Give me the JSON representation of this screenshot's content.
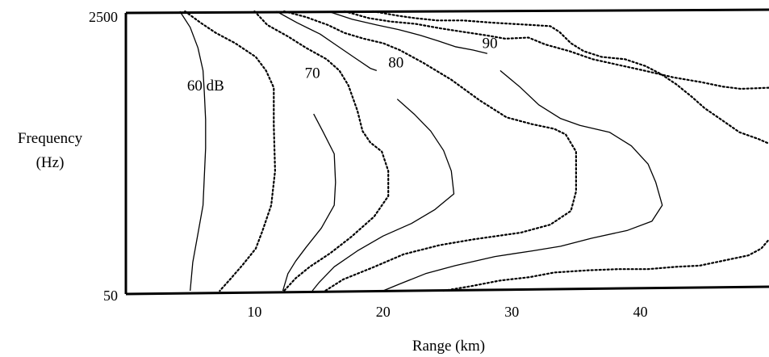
{
  "chart_data": {
    "type": "contour",
    "title": "",
    "xlabel": "Range (km)",
    "ylabel_lines": [
      "Frequency",
      "(Hz)"
    ],
    "x_ticks": [
      10,
      20,
      30,
      40
    ],
    "y_ticks": [
      50,
      2500
    ],
    "xlim": [
      0,
      50
    ],
    "ylim": [
      50,
      2500
    ],
    "grid": false,
    "contour_labels": [
      {
        "text": "60 dB",
        "x": 6.2,
        "y": 1850
      },
      {
        "text": "70",
        "x": 14.5,
        "y": 1960
      },
      {
        "text": "80",
        "x": 21.0,
        "y": 2050
      },
      {
        "text": "90",
        "x": 28.3,
        "y": 2220
      }
    ],
    "contours": [
      {
        "level": "60 dB",
        "style": "solid",
        "points": [
          [
            4.2,
            2500
          ],
          [
            5.0,
            2360
          ],
          [
            5.6,
            2180
          ],
          [
            6.0,
            1980
          ],
          [
            6.1,
            1790
          ],
          [
            6.2,
            1550
          ],
          [
            6.2,
            1300
          ],
          [
            6.1,
            1050
          ],
          [
            6.0,
            800
          ],
          [
            5.6,
            550
          ],
          [
            5.2,
            300
          ],
          [
            5.0,
            50
          ]
        ]
      },
      {
        "level": "",
        "style": "dotted",
        "points": [
          [
            4.6,
            2500
          ],
          [
            5.8,
            2400
          ],
          [
            7.0,
            2310
          ],
          [
            8.5,
            2220
          ],
          [
            10.1,
            2100
          ],
          [
            10.9,
            1980
          ],
          [
            11.5,
            1830
          ],
          [
            11.5,
            1500
          ],
          [
            11.6,
            1100
          ],
          [
            11.3,
            800
          ],
          [
            10.6,
            570
          ],
          [
            10.1,
            420
          ],
          [
            9.1,
            280
          ],
          [
            8.1,
            150
          ],
          [
            7.3,
            50
          ]
        ]
      },
      {
        "level": "70",
        "style": "solid",
        "points": [
          [
            14.6,
            1600
          ],
          [
            15.3,
            1450
          ],
          [
            16.2,
            1250
          ],
          [
            16.3,
            1000
          ],
          [
            16.2,
            800
          ],
          [
            15.2,
            600
          ],
          [
            14.0,
            430
          ],
          [
            13.2,
            310
          ],
          [
            12.6,
            200
          ],
          [
            12.2,
            50
          ]
        ]
      },
      {
        "level": "",
        "style": "dotted",
        "points": [
          [
            10.0,
            2500
          ],
          [
            11.0,
            2380
          ],
          [
            12.6,
            2280
          ],
          [
            14.0,
            2180
          ],
          [
            15.6,
            2080
          ],
          [
            16.6,
            1980
          ],
          [
            17.3,
            1850
          ],
          [
            18.0,
            1630
          ],
          [
            18.4,
            1450
          ],
          [
            19.0,
            1350
          ],
          [
            19.9,
            1270
          ],
          [
            20.4,
            1100
          ],
          [
            20.4,
            880
          ],
          [
            19.3,
            700
          ],
          [
            17.5,
            520
          ],
          [
            15.9,
            380
          ],
          [
            14.3,
            260
          ],
          [
            13.2,
            160
          ],
          [
            12.3,
            50
          ]
        ]
      },
      {
        "level": "80",
        "style": "solid",
        "points": [
          [
            21.1,
            1730
          ],
          [
            22.4,
            1600
          ],
          [
            23.7,
            1450
          ],
          [
            24.7,
            1280
          ],
          [
            25.3,
            1100
          ],
          [
            25.5,
            900
          ],
          [
            24.0,
            760
          ],
          [
            22.2,
            640
          ],
          [
            20.0,
            530
          ],
          [
            18.0,
            400
          ],
          [
            16.2,
            260
          ],
          [
            15.0,
            120
          ],
          [
            14.5,
            50
          ]
        ]
      },
      {
        "level": "",
        "style": "solid",
        "points": [
          [
            11.7,
            2500
          ],
          [
            13.3,
            2400
          ],
          [
            15.1,
            2300
          ],
          [
            16.4,
            2200
          ],
          [
            17.7,
            2100
          ],
          [
            19.0,
            2000
          ],
          [
            19.5,
            1980
          ]
        ]
      },
      {
        "level": "",
        "style": "dotted",
        "points": [
          [
            12.3,
            2500
          ],
          [
            14.0,
            2450
          ],
          [
            15.7,
            2380
          ],
          [
            17.0,
            2310
          ],
          [
            18.5,
            2260
          ],
          [
            20.0,
            2220
          ],
          [
            21.3,
            2160
          ],
          [
            23.1,
            2050
          ],
          [
            25.3,
            1900
          ],
          [
            27.5,
            1720
          ],
          [
            29.6,
            1570
          ],
          [
            31.6,
            1510
          ],
          [
            33.3,
            1470
          ],
          [
            34.2,
            1420
          ],
          [
            35.0,
            1270
          ],
          [
            35.0,
            1100
          ],
          [
            35.0,
            920
          ],
          [
            34.6,
            750
          ],
          [
            33.0,
            630
          ],
          [
            30.7,
            560
          ],
          [
            27.0,
            500
          ],
          [
            24.4,
            450
          ],
          [
            21.6,
            370
          ],
          [
            19.1,
            250
          ],
          [
            16.9,
            150
          ],
          [
            15.5,
            50
          ]
        ]
      },
      {
        "level": "90",
        "style": "solid",
        "points": [
          [
            15.7,
            2500
          ],
          [
            17.6,
            2430
          ],
          [
            19.5,
            2380
          ],
          [
            21.2,
            2340
          ],
          [
            22.9,
            2290
          ],
          [
            24.3,
            2240
          ],
          [
            25.6,
            2190
          ],
          [
            27.0,
            2160
          ],
          [
            28.1,
            2130
          ]
        ]
      },
      {
        "level": "",
        "style": "solid",
        "points": [
          [
            29.1,
            1980
          ],
          [
            30.6,
            1840
          ],
          [
            32.1,
            1680
          ],
          [
            33.8,
            1560
          ],
          [
            35.3,
            1500
          ],
          [
            37.6,
            1440
          ],
          [
            39.3,
            1320
          ],
          [
            40.6,
            1160
          ],
          [
            41.2,
            1000
          ],
          [
            41.7,
            800
          ],
          [
            40.9,
            660
          ],
          [
            39.0,
            580
          ],
          [
            36.2,
            510
          ],
          [
            33.8,
            440
          ],
          [
            31.6,
            400
          ],
          [
            28.7,
            350
          ],
          [
            25.6,
            270
          ],
          [
            23.3,
            200
          ],
          [
            21.3,
            110
          ],
          [
            20.0,
            50
          ]
        ]
      },
      {
        "level": "",
        "style": "dotted",
        "points": [
          [
            17.0,
            2500
          ],
          [
            18.9,
            2440
          ],
          [
            20.6,
            2410
          ],
          [
            22.5,
            2390
          ],
          [
            24.5,
            2350
          ],
          [
            26.2,
            2320
          ],
          [
            28.0,
            2290
          ],
          [
            29.5,
            2260
          ],
          [
            31.3,
            2270
          ],
          [
            32.6,
            2210
          ],
          [
            34.5,
            2150
          ],
          [
            36.3,
            2080
          ],
          [
            38.3,
            2030
          ],
          [
            40.3,
            1980
          ],
          [
            42.6,
            1920
          ],
          [
            44.7,
            1880
          ],
          [
            46.4,
            1840
          ],
          [
            47.8,
            1820
          ],
          [
            50.0,
            1830
          ]
        ]
      },
      {
        "level": "",
        "style": "dotted",
        "points": [
          [
            19.2,
            2500
          ],
          [
            21.2,
            2460
          ],
          [
            22.5,
            2440
          ],
          [
            24.2,
            2420
          ],
          [
            26.2,
            2420
          ],
          [
            28.5,
            2400
          ],
          [
            30.0,
            2390
          ],
          [
            31.5,
            2380
          ],
          [
            33.0,
            2370
          ],
          [
            33.7,
            2320
          ],
          [
            34.6,
            2220
          ],
          [
            35.6,
            2150
          ],
          [
            37.0,
            2100
          ],
          [
            38.8,
            2080
          ],
          [
            40.4,
            2020
          ],
          [
            41.6,
            1950
          ],
          [
            42.8,
            1860
          ],
          [
            44.0,
            1750
          ],
          [
            45.0,
            1650
          ],
          [
            46.3,
            1550
          ],
          [
            47.7,
            1440
          ],
          [
            49.2,
            1380
          ],
          [
            50.0,
            1340
          ]
        ]
      },
      {
        "level": "",
        "style": "dotted",
        "points": [
          [
            24.7,
            50
          ],
          [
            26.8,
            90
          ],
          [
            29.1,
            140
          ],
          [
            31.4,
            170
          ],
          [
            33.3,
            210
          ],
          [
            36.0,
            230
          ],
          [
            38.3,
            240
          ],
          [
            40.6,
            240
          ],
          [
            42.8,
            260
          ],
          [
            44.6,
            270
          ],
          [
            46.7,
            320
          ],
          [
            48.4,
            360
          ],
          [
            49.4,
            420
          ],
          [
            50.0,
            500
          ]
        ]
      }
    ]
  }
}
